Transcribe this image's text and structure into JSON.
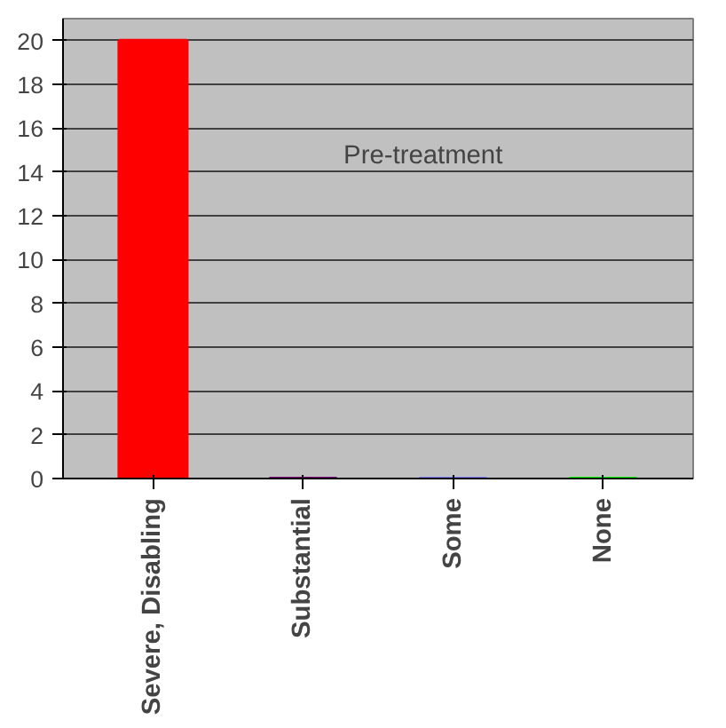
{
  "chart_data": {
    "type": "bar",
    "categories": [
      "Severe, Disabling",
      "Substantial",
      "Some",
      "None"
    ],
    "values": [
      20,
      0,
      0,
      0
    ],
    "colors": [
      "#ff0000",
      "#800080",
      "#8080ff",
      "#00ff00"
    ],
    "ylim": [
      0,
      21
    ],
    "yticks": [
      0,
      2,
      4,
      6,
      8,
      10,
      12,
      14,
      16,
      18,
      20
    ],
    "grid": "y",
    "annotations": [
      "Pre-treatment"
    ]
  }
}
